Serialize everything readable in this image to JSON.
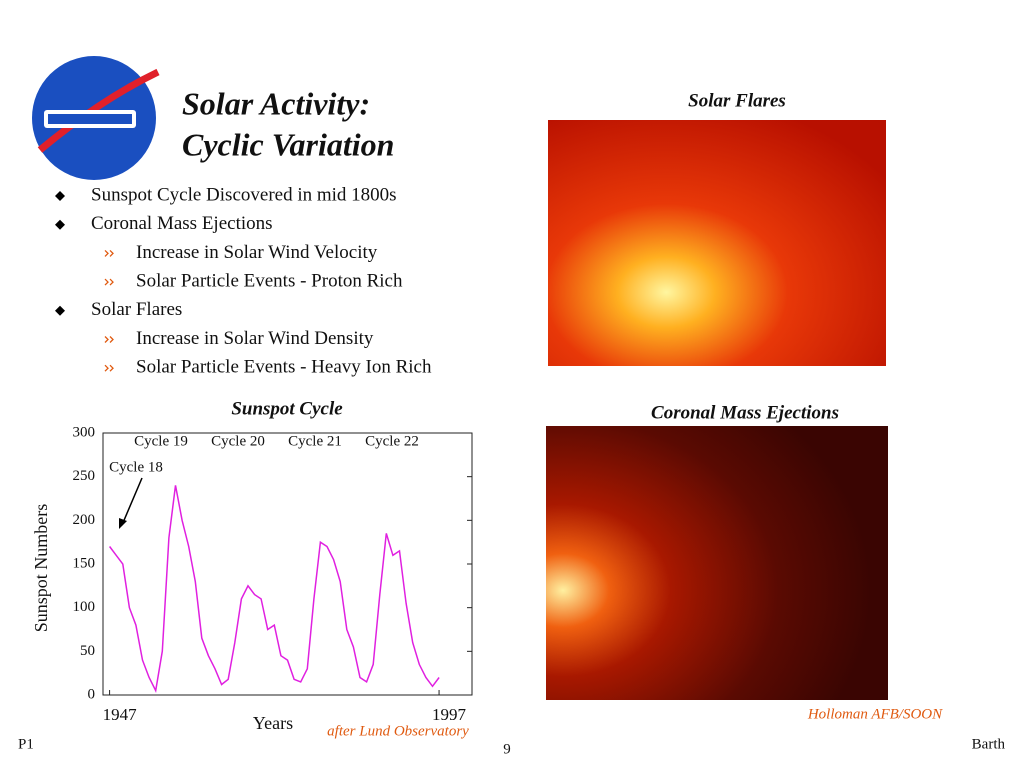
{
  "header": {
    "title_lines": [
      "Solar Activity:",
      "Cyclic Variation"
    ]
  },
  "bullets": [
    {
      "text": "Sunspot Cycle Discovered in mid 1800s",
      "subitems": []
    },
    {
      "text": "Coronal Mass Ejections",
      "subitems": [
        "Increase in Solar Wind Velocity",
        "Solar Particle Events - Proton Rich"
      ]
    },
    {
      "text": "Solar Flares",
      "subitems": [
        "Increase in Solar Wind Density",
        "Solar Particle Events - Heavy Ion Rich"
      ]
    }
  ],
  "images": [
    {
      "caption": "Solar Flares"
    },
    {
      "caption": "Coronal Mass Ejections"
    }
  ],
  "credit": "Holloman AFB/SOON",
  "footer": {
    "left": "P1",
    "page": "9",
    "right": "Barth"
  },
  "chart_data": {
    "type": "line",
    "title": "Sunspot Cycle",
    "x_label": "Years",
    "y_label": "Sunspot Numbers",
    "source": "after Lund Observatory",
    "annotations": [
      "Cycle 18",
      "Cycle 19",
      "Cycle 20",
      "Cycle 21",
      "Cycle 22"
    ],
    "color": "#e020e0",
    "x": [
      1947,
      1948,
      1949,
      1950,
      1951,
      1952,
      1953,
      1954,
      1955,
      1956,
      1957,
      1958,
      1959,
      1960,
      1961,
      1962,
      1963,
      1964,
      1965,
      1966,
      1967,
      1968,
      1969,
      1970,
      1971,
      1972,
      1973,
      1974,
      1975,
      1976,
      1977,
      1978,
      1979,
      1980,
      1981,
      1982,
      1983,
      1984,
      1985,
      1986,
      1987,
      1988,
      1989,
      1990,
      1991,
      1992,
      1993,
      1994,
      1995,
      1996,
      1997
    ],
    "values": [
      170,
      160,
      150,
      100,
      80,
      40,
      20,
      5,
      50,
      180,
      240,
      200,
      170,
      130,
      65,
      45,
      30,
      12,
      18,
      60,
      110,
      125,
      115,
      110,
      75,
      80,
      45,
      40,
      18,
      15,
      30,
      110,
      175,
      170,
      155,
      130,
      75,
      55,
      20,
      15,
      35,
      115,
      185,
      160,
      165,
      105,
      60,
      35,
      20,
      10,
      20
    ],
    "xlim": [
      1946,
      2002
    ],
    "ylim": [
      0,
      300
    ],
    "xticks": [
      1947,
      1997
    ],
    "yticks": [
      0,
      50,
      100,
      150,
      200,
      250,
      300
    ]
  }
}
